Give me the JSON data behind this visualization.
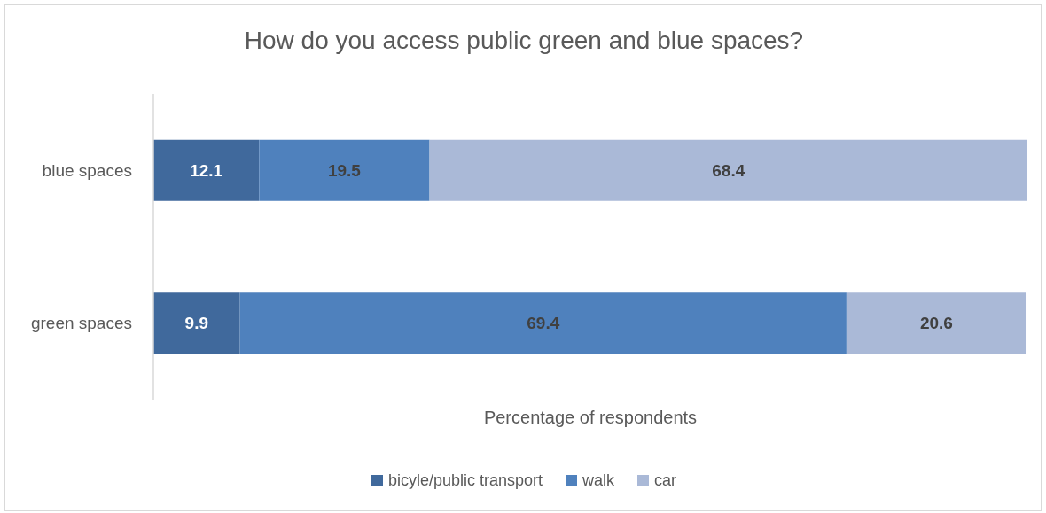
{
  "chart_data": {
    "type": "bar",
    "title": "How do you access public green and blue spaces?",
    "xlabel": "Percentage of respondents",
    "categories": [
      "blue spaces",
      "green spaces"
    ],
    "orientation": "horizontal",
    "stacked": true,
    "series": [
      {
        "name": "bicyle/public transport",
        "color": "#40699c",
        "values": [
          12.1,
          9.9
        ]
      },
      {
        "name": "walk",
        "color": "#4f81bd",
        "values": [
          19.5,
          69.4
        ]
      },
      {
        "name": "car",
        "color": "#aab9d7",
        "values": [
          68.4,
          20.6
        ]
      }
    ],
    "xlim": [
      0,
      100
    ],
    "tick_labels": "y",
    "data_labels": true,
    "legend": "bottom"
  }
}
